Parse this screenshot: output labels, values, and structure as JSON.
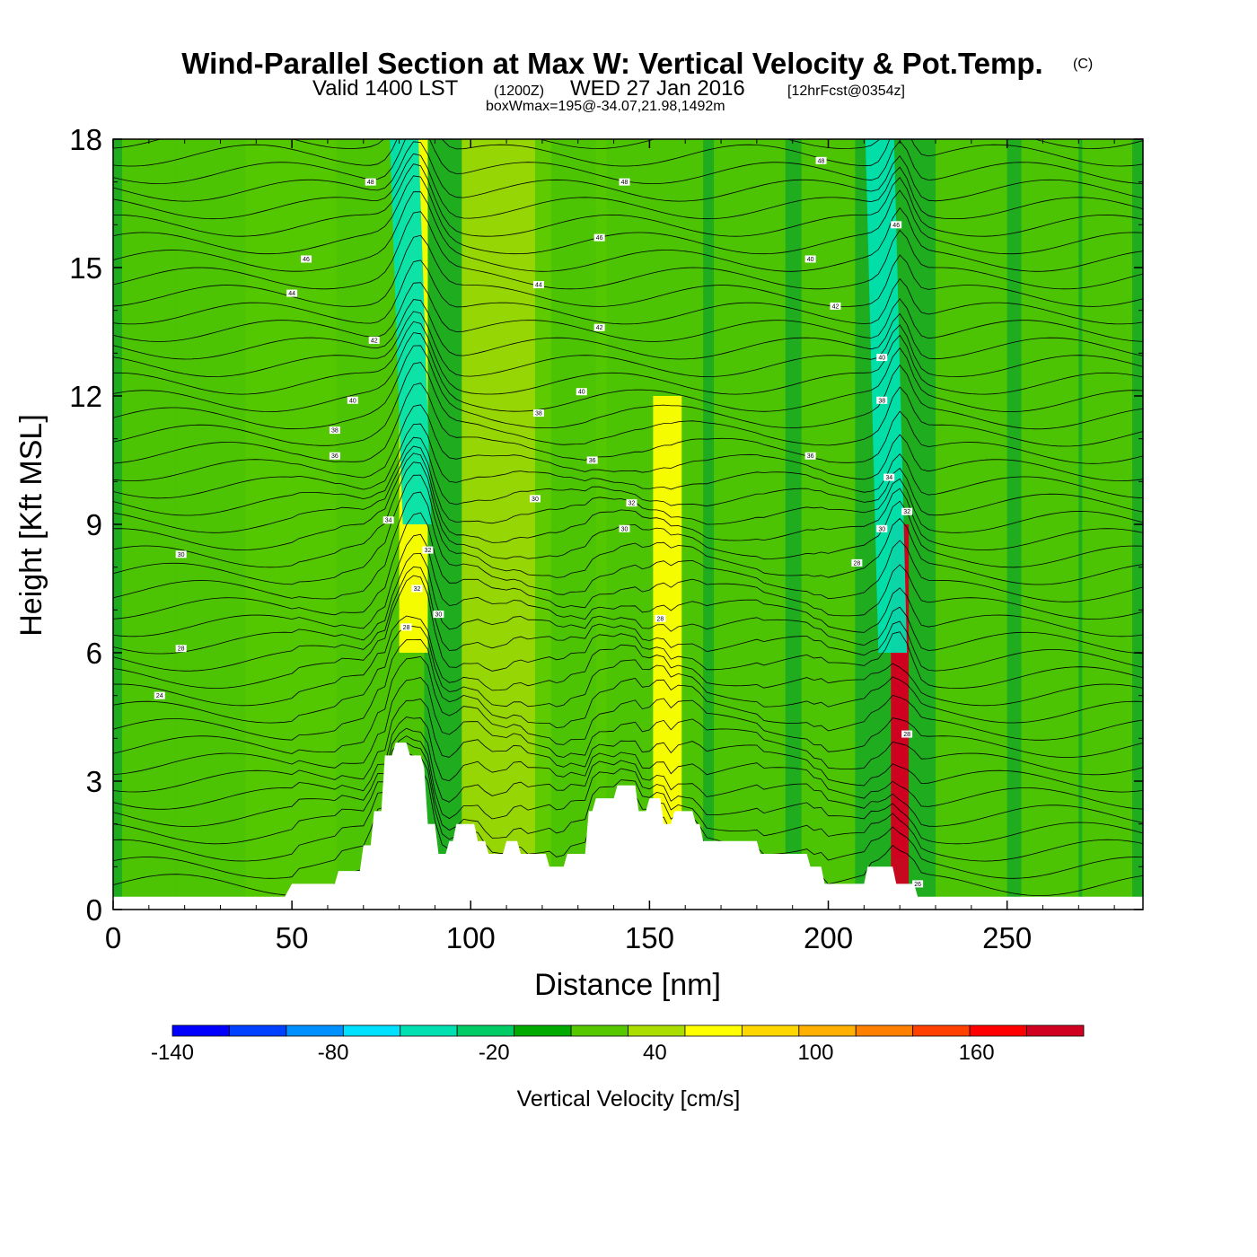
{
  "header": {
    "title": "Wind-Parallel Section at Max W: Vertical Velocity & Pot.Temp.",
    "copyright": "(C)",
    "valid_prefix": "Valid 1400 LST",
    "valid_utc": "(1200Z)",
    "valid_date": "WED 27 Jan 2016",
    "forecast": "[12hrFcst@0354z]",
    "boxw": "boxWmax=195@-34.07,21.98,1492m"
  },
  "chart_data": {
    "type": "heatmap",
    "title": "Wind-Parallel Section at Max W: Vertical Velocity & Pot.Temp.",
    "xlabel": "Distance [nm]",
    "ylabel": "Height [Kft MSL]",
    "xlim": [
      0,
      288
    ],
    "ylim": [
      0,
      18
    ],
    "x_ticks": [
      0,
      50,
      100,
      150,
      200,
      250
    ],
    "y_ticks": [
      0,
      3,
      6,
      9,
      12,
      15,
      18
    ],
    "x_tick_labels": [
      "0",
      "50",
      "100",
      "150",
      "200",
      "250"
    ],
    "y_tick_labels": [
      "0",
      "3",
      "6",
      "9",
      "12",
      "15",
      "18"
    ],
    "background_w": -10,
    "features": [
      {
        "type": "updraft",
        "x": 220,
        "peak_height": 5,
        "w": 195
      },
      {
        "type": "updraft",
        "x": 155,
        "peak_height": 6,
        "w": 40
      },
      {
        "type": "updraft",
        "x": 84,
        "peak_height": 12,
        "w": 40
      },
      {
        "type": "downdraft",
        "x": 85,
        "peak_height": 15,
        "w": -60
      },
      {
        "type": "downdraft",
        "x": 218,
        "peak_height": 12,
        "w": -60
      }
    ],
    "terrain": [
      [
        0,
        0.3
      ],
      [
        48,
        0.3
      ],
      [
        50,
        0.6
      ],
      [
        62,
        0.6
      ],
      [
        63,
        0.9
      ],
      [
        69,
        0.9
      ],
      [
        70,
        1.5
      ],
      [
        72,
        1.5
      ],
      [
        73,
        2.3
      ],
      [
        75,
        2.3
      ],
      [
        76,
        3.6
      ],
      [
        78,
        3.6
      ],
      [
        79,
        3.9
      ],
      [
        82,
        3.9
      ],
      [
        83,
        3.6
      ],
      [
        86,
        3.6
      ],
      [
        87,
        3.3
      ],
      [
        88,
        2.0
      ],
      [
        90,
        2.0
      ],
      [
        91,
        1.3
      ],
      [
        93,
        1.3
      ],
      [
        94,
        1.6
      ],
      [
        95,
        1.6
      ],
      [
        96,
        2.0
      ],
      [
        101,
        2.0
      ],
      [
        102,
        1.6
      ],
      [
        104,
        1.6
      ],
      [
        105,
        1.3
      ],
      [
        109,
        1.3
      ],
      [
        110,
        1.6
      ],
      [
        113,
        1.6
      ],
      [
        114,
        1.3
      ],
      [
        121,
        1.3
      ],
      [
        122,
        1.0
      ],
      [
        126,
        1.0
      ],
      [
        127,
        1.3
      ],
      [
        132,
        1.3
      ],
      [
        133,
        2.3
      ],
      [
        134,
        2.3
      ],
      [
        135,
        2.6
      ],
      [
        140,
        2.6
      ],
      [
        141,
        2.9
      ],
      [
        146,
        2.9
      ],
      [
        147,
        2.3
      ],
      [
        149,
        2.3
      ],
      [
        150,
        2.6
      ],
      [
        153,
        2.6
      ],
      [
        154,
        2.0
      ],
      [
        156,
        2.0
      ],
      [
        157,
        2.3
      ],
      [
        162,
        2.3
      ],
      [
        163,
        2.0
      ],
      [
        164,
        2.0
      ],
      [
        165,
        1.6
      ],
      [
        180,
        1.6
      ],
      [
        181,
        1.3
      ],
      [
        194,
        1.3
      ],
      [
        195,
        1.0
      ],
      [
        198,
        1.0
      ],
      [
        199,
        0.6
      ],
      [
        210,
        0.6
      ],
      [
        211,
        1.0
      ],
      [
        218,
        1.0
      ],
      [
        219,
        0.6
      ],
      [
        224,
        0.6
      ],
      [
        225,
        0.3
      ],
      [
        288,
        0.3
      ]
    ],
    "theta_contour_labels": [
      {
        "x": 13,
        "y": 5,
        "v": "24"
      },
      {
        "x": 19,
        "y": 6.1,
        "v": "28"
      },
      {
        "x": 19,
        "y": 8.3,
        "v": "30"
      },
      {
        "x": 62,
        "y": 10.6,
        "v": "36"
      },
      {
        "x": 62,
        "y": 11.2,
        "v": "38"
      },
      {
        "x": 67,
        "y": 11.9,
        "v": "40"
      },
      {
        "x": 73,
        "y": 13.3,
        "v": "42"
      },
      {
        "x": 50,
        "y": 14.4,
        "v": "44"
      },
      {
        "x": 54,
        "y": 15.2,
        "v": "46"
      },
      {
        "x": 72,
        "y": 17,
        "v": "48"
      },
      {
        "x": 77,
        "y": 9.1,
        "v": "34"
      },
      {
        "x": 91,
        "y": 6.9,
        "v": "30"
      },
      {
        "x": 82,
        "y": 6.6,
        "v": "28"
      },
      {
        "x": 85,
        "y": 7.5,
        "v": "32"
      },
      {
        "x": 88,
        "y": 8.4,
        "v": "32"
      },
      {
        "x": 119,
        "y": 11.6,
        "v": "38"
      },
      {
        "x": 118,
        "y": 9.6,
        "v": "30"
      },
      {
        "x": 119,
        "y": 14.6,
        "v": "44"
      },
      {
        "x": 131,
        "y": 12.1,
        "v": "40"
      },
      {
        "x": 134,
        "y": 10.5,
        "v": "36"
      },
      {
        "x": 136,
        "y": 13.6,
        "v": "42"
      },
      {
        "x": 136,
        "y": 15.7,
        "v": "46"
      },
      {
        "x": 143,
        "y": 17,
        "v": "48"
      },
      {
        "x": 143,
        "y": 8.9,
        "v": "30"
      },
      {
        "x": 145,
        "y": 9.5,
        "v": "32"
      },
      {
        "x": 153,
        "y": 6.8,
        "v": "28"
      },
      {
        "x": 195,
        "y": 10.6,
        "v": "36"
      },
      {
        "x": 195,
        "y": 15.2,
        "v": "40"
      },
      {
        "x": 198,
        "y": 17.5,
        "v": "48"
      },
      {
        "x": 202,
        "y": 14.1,
        "v": "42"
      },
      {
        "x": 208,
        "y": 8.1,
        "v": "28"
      },
      {
        "x": 215,
        "y": 8.9,
        "v": "30"
      },
      {
        "x": 215,
        "y": 11.9,
        "v": "38"
      },
      {
        "x": 215,
        "y": 12.9,
        "v": "40"
      },
      {
        "x": 217,
        "y": 10.1,
        "v": "34"
      },
      {
        "x": 219,
        "y": 16,
        "v": "46"
      },
      {
        "x": 222,
        "y": 9.3,
        "v": "32"
      },
      {
        "x": 222,
        "y": 4.1,
        "v": "28"
      },
      {
        "x": 225,
        "y": 0.6,
        "v": "26"
      }
    ],
    "colorbar": {
      "label": "Vertical Velocity [cm/s]",
      "min": -140,
      "max": 200,
      "step": 20,
      "tick_values": [
        -140,
        -80,
        -20,
        40,
        100,
        160
      ],
      "tick_labels": [
        "-140",
        "-80",
        "-20",
        "40",
        "100",
        "160"
      ],
      "colors": [
        "#0000ff",
        "#0040ff",
        "#0090ff",
        "#00e0ff",
        "#00e0b0",
        "#00cc66",
        "#00aa00",
        "#55c800",
        "#aadd00",
        "#ffff00",
        "#ffd700",
        "#ffb000",
        "#ff8000",
        "#ff4000",
        "#ff0000",
        "#d00020"
      ]
    }
  }
}
